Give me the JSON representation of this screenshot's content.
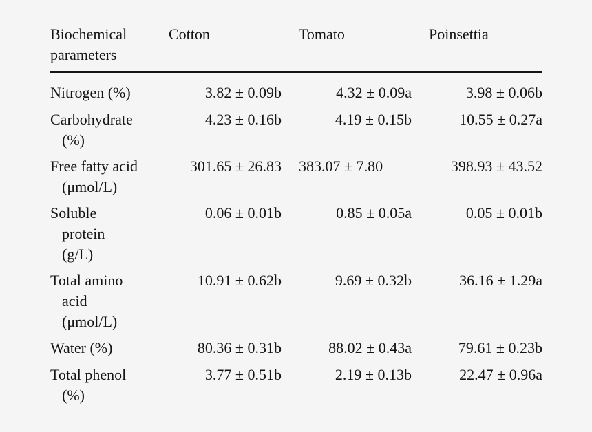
{
  "table": {
    "header": {
      "param_line1": "Biochemical",
      "param_line2": "parameters",
      "col1": "Cotton",
      "col2": "Tomato",
      "col3": "Poinsettia"
    },
    "rows": [
      {
        "param": [
          "Nitrogen (%)"
        ],
        "cotton": "3.82 ± 0.09b",
        "tomato": "4.32 ± 0.09a",
        "poinsettia": "3.98 ± 0.06b"
      },
      {
        "param": [
          "Carbohydrate",
          "(%)"
        ],
        "cotton": "4.23 ± 0.16b",
        "tomato": "4.19 ± 0.15b",
        "poinsettia": "10.55 ± 0.27a"
      },
      {
        "param": [
          "Free fatty acid",
          "(μmol/L)"
        ],
        "cotton": "301.65 ± 26.83",
        "tomato": "383.07 ± 7.80",
        "poinsettia": "398.93 ± 43.52"
      },
      {
        "param": [
          "Soluble",
          "protein",
          "(g/L)"
        ],
        "cotton": "0.06 ± 0.01b",
        "tomato": "0.85 ± 0.05a",
        "poinsettia": "0.05 ± 0.01b"
      },
      {
        "param": [
          "Total amino",
          "acid",
          "(μmol/L)"
        ],
        "cotton": "10.91 ± 0.62b",
        "tomato": "9.69 ± 0.32b",
        "poinsettia": "36.16 ± 1.29a"
      },
      {
        "param": [
          "Water (%)"
        ],
        "cotton": "80.36 ± 0.31b",
        "tomato": "88.02 ± 0.43a",
        "poinsettia": "79.61 ± 0.23b"
      },
      {
        "param": [
          "Total phenol",
          "(%)"
        ],
        "cotton": "3.77 ± 0.51b",
        "tomato": "2.19 ± 0.13b",
        "poinsettia": "22.47 ± 0.96a"
      }
    ]
  }
}
